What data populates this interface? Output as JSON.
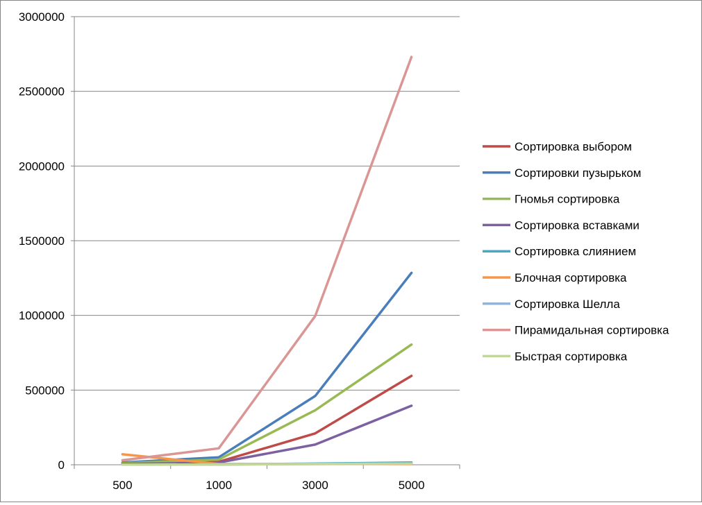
{
  "chart_data": {
    "type": "line",
    "categories": [
      "500",
      "1000",
      "3000",
      "5000"
    ],
    "ylim": [
      0,
      3000000
    ],
    "yticks": [
      0,
      500000,
      1000000,
      1500000,
      2000000,
      2500000,
      3000000
    ],
    "ytick_labels": [
      "0",
      "500000",
      "1000000",
      "1500000",
      "2000000",
      "2500000",
      "3000000"
    ],
    "grid": "horizontal",
    "legend_position": "right",
    "series": [
      {
        "name": "Сортировка выбором",
        "color": "#BE4B48",
        "values": [
          5000,
          20000,
          210000,
          595000
        ]
      },
      {
        "name": "Сортировки пузырьком",
        "color": "#4A7EBB",
        "values": [
          15000,
          50000,
          460000,
          1285000
        ]
      },
      {
        "name": "Гномья сортировка",
        "color": "#98B954",
        "values": [
          10000,
          35000,
          365000,
          805000
        ]
      },
      {
        "name": "Сортировка вставками",
        "color": "#7D60A0",
        "values": [
          5000,
          15000,
          135000,
          395000
        ]
      },
      {
        "name": "Сортировка слиянием",
        "color": "#46AAC5",
        "values": [
          1000,
          2000,
          8000,
          15000
        ]
      },
      {
        "name": "Блочная сортировка",
        "color": "#F79646",
        "values": [
          70000,
          5000,
          5000,
          5000
        ]
      },
      {
        "name": "Сортировка Шелла",
        "color": "#95B3D7",
        "values": [
          1000,
          2000,
          5000,
          8000
        ]
      },
      {
        "name": "Пирамидальная сортировка",
        "color": "#D99694",
        "values": [
          30000,
          110000,
          995000,
          2730000
        ]
      },
      {
        "name": "Быстрая сортировка",
        "color": "#C3D69B",
        "values": [
          1000,
          2000,
          5000,
          8000
        ]
      }
    ]
  }
}
